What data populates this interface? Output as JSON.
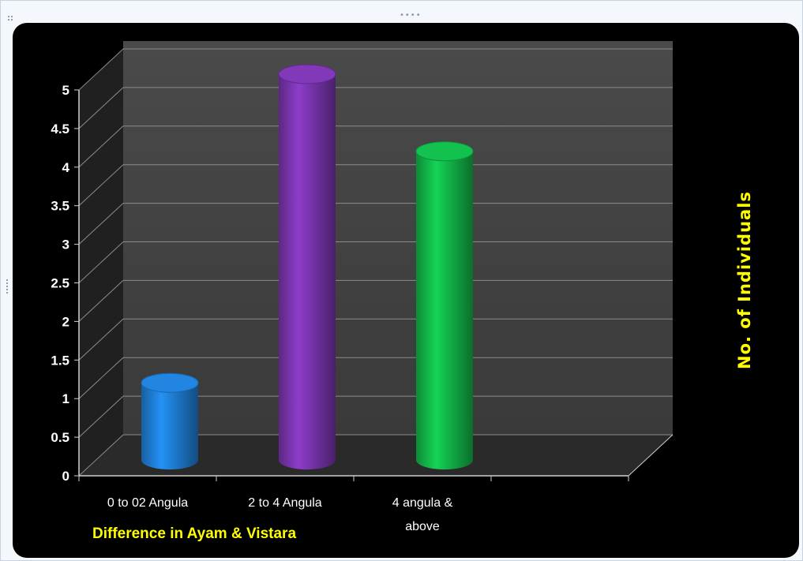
{
  "chart_data": {
    "type": "bar",
    "categories": [
      "0 to 02 Angula",
      "2 to 4 Angula",
      "4 angula &\nabove"
    ],
    "values": [
      1,
      5,
      4
    ],
    "colors": [
      "#1f7fd6",
      "#7b35b0",
      "#12b84a"
    ],
    "xlabel": "Difference in Ayam & Vistara",
    "ylabel": "No. of Individuals",
    "ylim": [
      0,
      5
    ],
    "yticks": [
      "0",
      "0.5",
      "1",
      "1.5",
      "2",
      "2.5",
      "3",
      "3.5",
      "4",
      "4.5",
      "5"
    ],
    "grid": true,
    "style": "3d-cylinder",
    "background": "#000000"
  }
}
